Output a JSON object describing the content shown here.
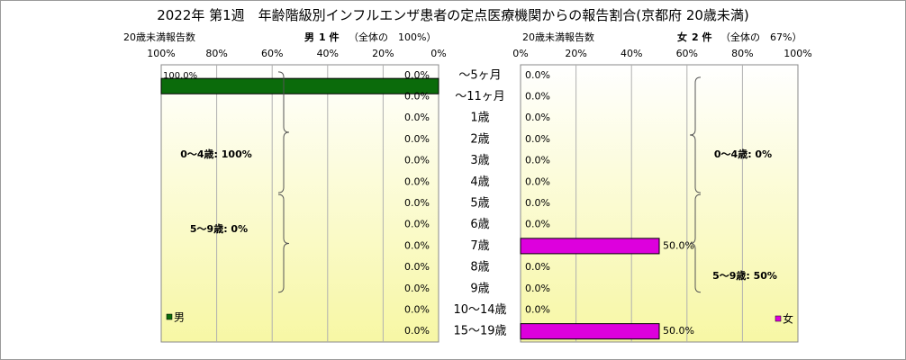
{
  "title": "2022年 第1週　年齢階級別インフルエンザ患者の定点医療機関からの報告割合(京都府 20歳未満)",
  "left_header": {
    "left": "20歳未満報告数",
    "gender": "男",
    "count": "1 件",
    "share": "（全体の　100%）"
  },
  "right_header": {
    "left": "20歳未満報告数",
    "gender": "女",
    "count": "2 件",
    "share": "（全体の　67%）"
  },
  "colors": {
    "male": "#0b6b0b",
    "female": "#dd00dd",
    "bg_top": "#ffffff",
    "bg_bottom": "#f7f7a4"
  },
  "chart_data": {
    "type": "bar",
    "categories": [
      "～5ヶ月",
      "～11ヶ月",
      "1歳",
      "2歳",
      "3歳",
      "4歳",
      "5歳",
      "6歳",
      "7歳",
      "8歳",
      "9歳",
      "10～14歳",
      "15～19歳"
    ],
    "x_tick_labels": [
      "0%",
      "20%",
      "40%",
      "60%",
      "80%",
      "100%"
    ],
    "xlim": [
      0,
      100
    ],
    "series": [
      {
        "name": "男",
        "values": [
          100,
          0,
          0,
          0,
          0,
          0,
          0,
          0,
          0,
          0,
          0,
          0,
          0
        ],
        "labels": [
          "100.0%",
          "0.0%",
          "0.0%",
          "0.0%",
          "0.0%",
          "0.0%",
          "0.0%",
          "0.0%",
          "0.0%",
          "0.0%",
          "0.0%",
          "0.0%",
          "0.0%"
        ],
        "unlabeled_zero_bars": [
          "0.0%"
        ]
      },
      {
        "name": "女",
        "values": [
          0,
          0,
          0,
          0,
          0,
          0,
          0,
          0,
          50,
          0,
          0,
          0,
          50
        ],
        "labels": [
          "0.0%",
          "0.0%",
          "0.0%",
          "0.0%",
          "0.0%",
          "0.0%",
          "0.0%",
          "0.0%",
          "50.0%",
          "0.0%",
          "0.0%",
          "0.0%",
          "50.0%"
        ]
      }
    ],
    "annotations": {
      "male": [
        "0～4歳: 100%",
        "5～9歳: 0%"
      ],
      "female": [
        "0～4歳: 0%",
        "5～9歳: 50%"
      ]
    },
    "grid": true,
    "legend": "bottom-left / bottom-right"
  }
}
